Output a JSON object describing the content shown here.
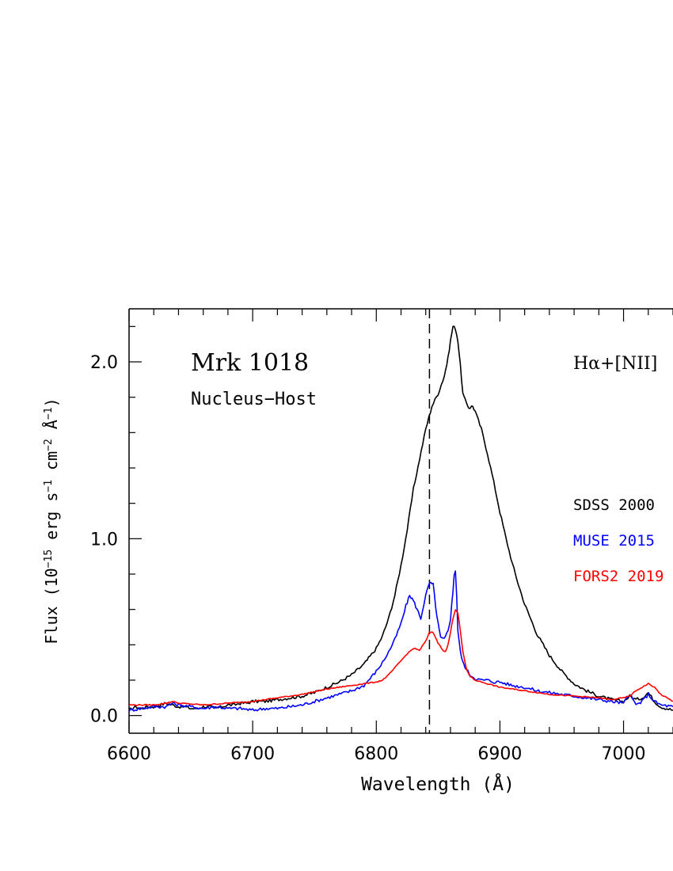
{
  "chart_data": {
    "type": "line",
    "title": "Mrk 1018",
    "subtitle": "Nucleus−Host",
    "line_label": "Hα+[NII]",
    "xlabel": "Wavelength (Å)",
    "ylabel_main": "Flux (10",
    "ylabel_exp1": "−15",
    "ylabel_mid1": " erg s",
    "ylabel_exp2": "−1",
    "ylabel_mid2": " cm",
    "ylabel_exp3": "−2",
    "ylabel_mid3": " Å",
    "ylabel_exp4": "−1",
    "ylabel_end": ")",
    "xlim": [
      6600,
      7040
    ],
    "ylim": [
      -0.1,
      2.3
    ],
    "xticks": [
      6600,
      6700,
      6800,
      6900,
      7000
    ],
    "xtick_labels": [
      "6600",
      "6700",
      "6800",
      "6900",
      "7000"
    ],
    "yticks": [
      0.0,
      1.0,
      2.0
    ],
    "ytick_labels": [
      "0.0",
      "1.0",
      "2.0"
    ],
    "reference_line_x": 6843,
    "legend_position": "right",
    "series": [
      {
        "name": "SDSS 2000",
        "color": "#000000",
        "x": [
          6600,
          6605,
          6610,
          6615,
          6620,
          6625,
          6630,
          6635,
          6640,
          6645,
          6650,
          6655,
          6660,
          6665,
          6670,
          6675,
          6680,
          6685,
          6690,
          6695,
          6700,
          6710,
          6720,
          6730,
          6740,
          6750,
          6760,
          6770,
          6780,
          6790,
          6800,
          6805,
          6810,
          6815,
          6820,
          6825,
          6830,
          6835,
          6840,
          6845,
          6850,
          6855,
          6858,
          6860,
          6862,
          6864,
          6866,
          6868,
          6870,
          6872,
          6875,
          6878,
          6880,
          6885,
          6890,
          6895,
          6900,
          6905,
          6910,
          6915,
          6920,
          6930,
          6940,
          6950,
          6960,
          6970,
          6980,
          6990,
          7000,
          7005,
          7010,
          7015,
          7020,
          7025,
          7030,
          7040
        ],
        "y": [
          0.03,
          0.05,
          0.04,
          0.05,
          0.05,
          0.06,
          0.07,
          0.06,
          0.05,
          0.05,
          0.04,
          0.04,
          0.05,
          0.05,
          0.04,
          0.05,
          0.06,
          0.06,
          0.07,
          0.07,
          0.08,
          0.08,
          0.09,
          0.1,
          0.11,
          0.13,
          0.16,
          0.19,
          0.23,
          0.29,
          0.38,
          0.45,
          0.55,
          0.68,
          0.85,
          1.05,
          1.28,
          1.45,
          1.62,
          1.75,
          1.82,
          1.92,
          2.02,
          2.12,
          2.2,
          2.19,
          2.12,
          1.98,
          1.82,
          1.78,
          1.74,
          1.75,
          1.72,
          1.62,
          1.48,
          1.32,
          1.15,
          1.0,
          0.86,
          0.74,
          0.63,
          0.46,
          0.34,
          0.25,
          0.18,
          0.14,
          0.11,
          0.09,
          0.08,
          0.11,
          0.09,
          0.1,
          0.13,
          0.08,
          0.05,
          0.03
        ]
      },
      {
        "name": "MUSE 2015",
        "color": "#0000ff",
        "x": [
          6600,
          6610,
          6620,
          6630,
          6635,
          6640,
          6650,
          6660,
          6670,
          6680,
          6690,
          6700,
          6710,
          6720,
          6730,
          6740,
          6750,
          6760,
          6770,
          6780,
          6790,
          6800,
          6805,
          6810,
          6815,
          6820,
          6824,
          6827,
          6830,
          6833,
          6836,
          6840,
          6843,
          6846,
          6849,
          6852,
          6855,
          6858,
          6860,
          6862,
          6863,
          6864,
          6865,
          6866,
          6868,
          6870,
          6873,
          6876,
          6880,
          6885,
          6890,
          6895,
          6900,
          6905,
          6910,
          6920,
          6930,
          6940,
          6950,
          6960,
          6970,
          6980,
          6990,
          7000,
          7005,
          7010,
          7015,
          7020,
          7025,
          7030,
          7040
        ],
        "y": [
          0.03,
          0.04,
          0.05,
          0.05,
          0.07,
          0.06,
          0.05,
          0.04,
          0.05,
          0.04,
          0.04,
          0.03,
          0.04,
          0.04,
          0.05,
          0.06,
          0.08,
          0.1,
          0.12,
          0.14,
          0.17,
          0.25,
          0.3,
          0.36,
          0.43,
          0.52,
          0.62,
          0.68,
          0.65,
          0.6,
          0.55,
          0.68,
          0.75,
          0.74,
          0.56,
          0.44,
          0.43,
          0.48,
          0.55,
          0.7,
          0.8,
          0.82,
          0.68,
          0.48,
          0.36,
          0.3,
          0.26,
          0.23,
          0.21,
          0.2,
          0.2,
          0.19,
          0.19,
          0.18,
          0.17,
          0.16,
          0.14,
          0.13,
          0.12,
          0.11,
          0.1,
          0.09,
          0.08,
          0.07,
          0.12,
          0.06,
          0.08,
          0.12,
          0.08,
          0.06,
          0.05
        ]
      },
      {
        "name": "FORS2 2019",
        "color": "#ff0000",
        "x": [
          6600,
          6620,
          6630,
          6635,
          6640,
          6660,
          6680,
          6700,
          6720,
          6740,
          6760,
          6780,
          6790,
          6800,
          6805,
          6810,
          6815,
          6820,
          6825,
          6830,
          6835,
          6840,
          6843,
          6846,
          6850,
          6854,
          6856,
          6858,
          6860,
          6862,
          6864,
          6866,
          6868,
          6870,
          6873,
          6876,
          6880,
          6890,
          6900,
          6920,
          6940,
          6960,
          6980,
          6990,
          7000,
          7005,
          7010,
          7015,
          7020,
          7025,
          7030,
          7040
        ],
        "y": [
          0.06,
          0.06,
          0.07,
          0.08,
          0.07,
          0.06,
          0.07,
          0.08,
          0.1,
          0.12,
          0.15,
          0.17,
          0.18,
          0.19,
          0.2,
          0.23,
          0.27,
          0.31,
          0.35,
          0.38,
          0.37,
          0.42,
          0.47,
          0.47,
          0.41,
          0.37,
          0.36,
          0.4,
          0.47,
          0.55,
          0.6,
          0.58,
          0.48,
          0.36,
          0.26,
          0.22,
          0.2,
          0.18,
          0.16,
          0.14,
          0.12,
          0.11,
          0.1,
          0.09,
          0.1,
          0.11,
          0.14,
          0.16,
          0.18,
          0.16,
          0.12,
          0.08
        ]
      }
    ]
  }
}
